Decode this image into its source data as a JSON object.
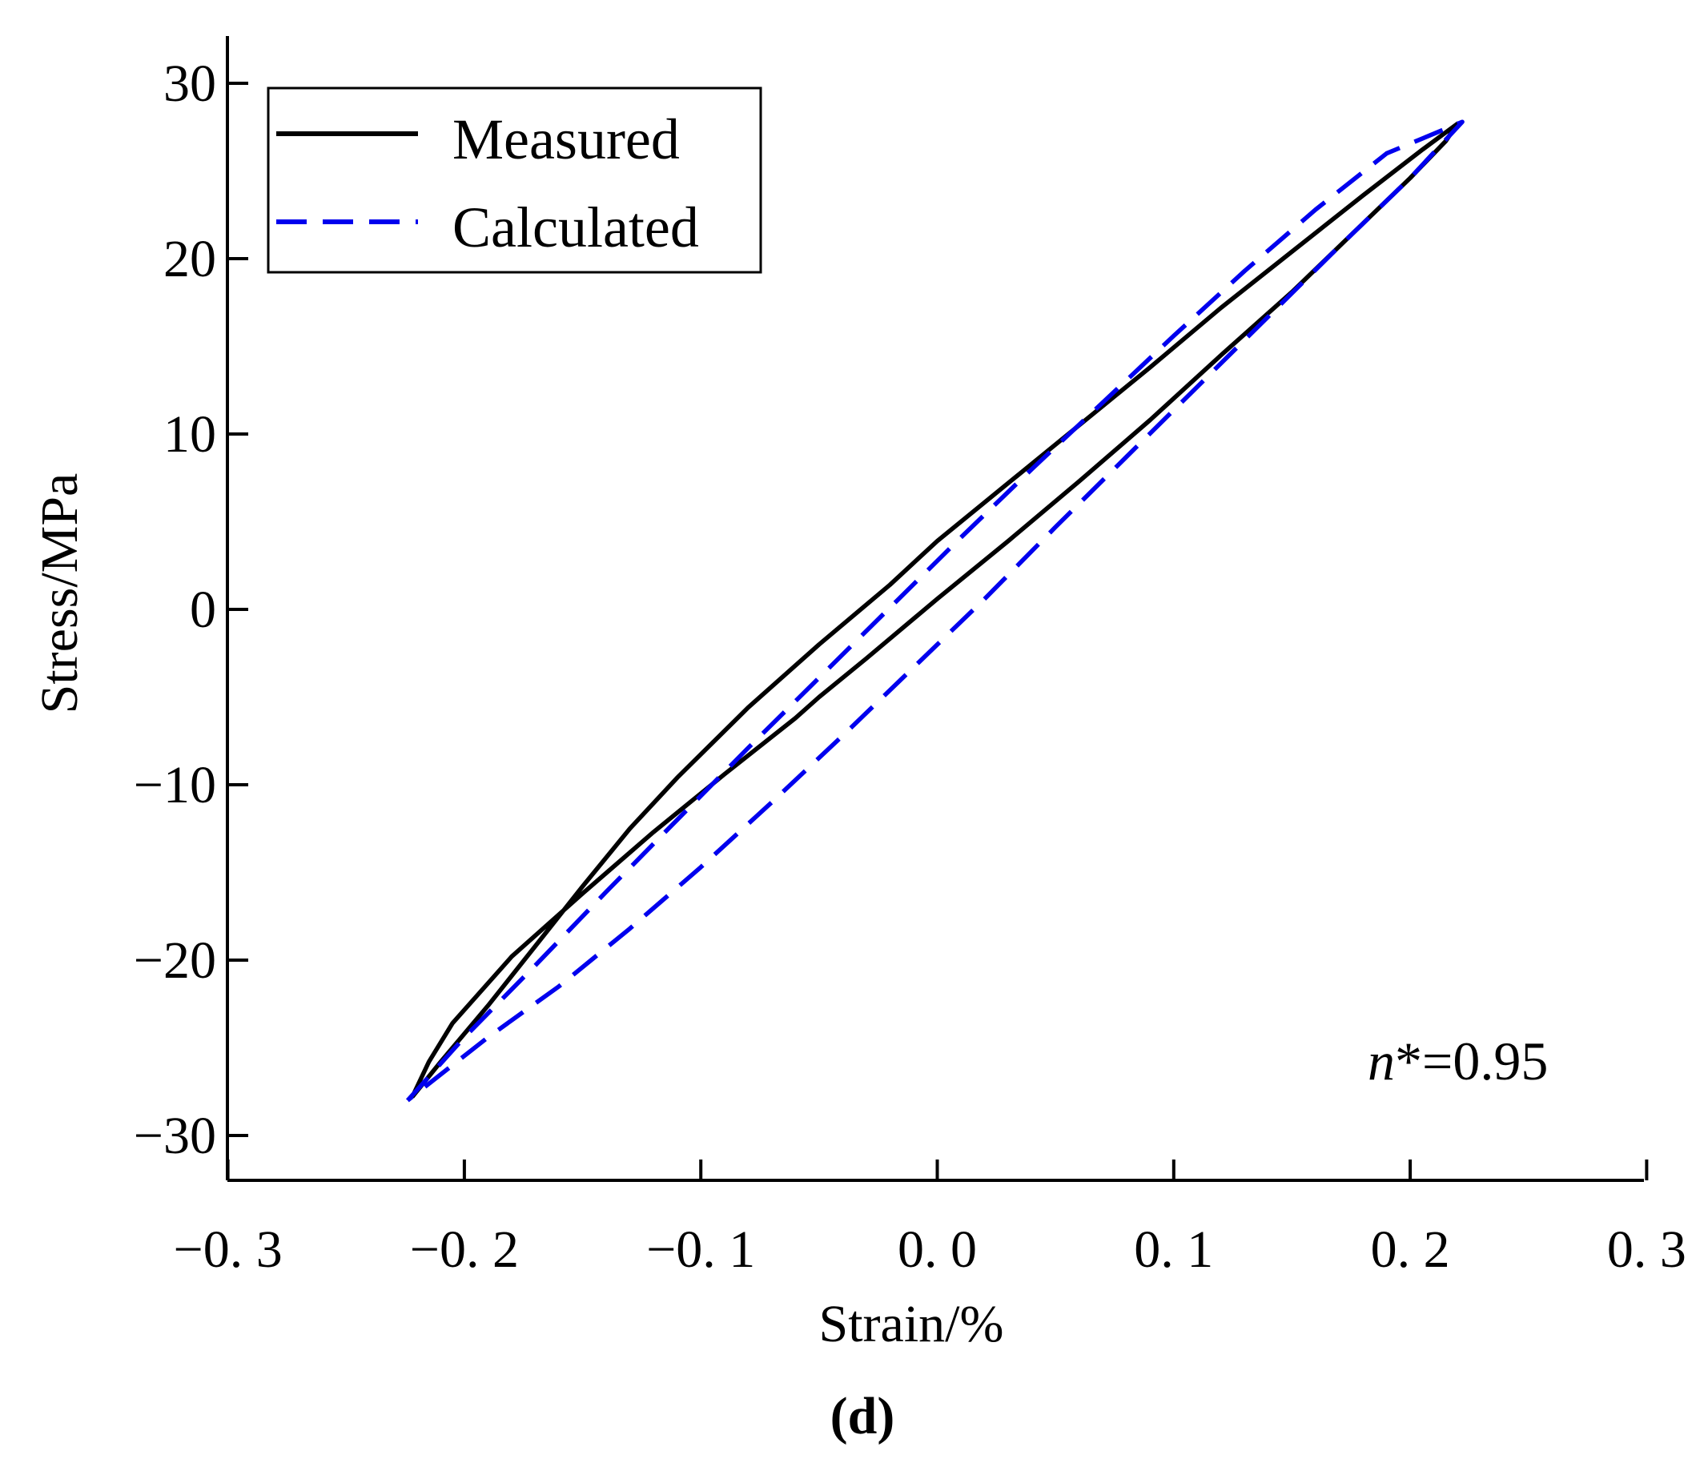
{
  "chart_data": {
    "type": "line",
    "title": "",
    "xlabel": "Strain/%",
    "ylabel": "Stress/MPa",
    "xlim": [
      -0.3,
      0.3
    ],
    "ylim": [
      -32.5,
      32.5
    ],
    "xticks": [
      -0.3,
      -0.2,
      -0.1,
      0.0,
      0.1,
      0.2,
      0.3
    ],
    "xtick_labels": [
      "−0. 3",
      "−0. 2",
      "−0. 1",
      "0. 0",
      "0. 1",
      "0. 2",
      "0. 3"
    ],
    "yticks": [
      -30,
      -20,
      -10,
      0,
      10,
      20,
      30
    ],
    "ytick_labels": [
      "−30",
      "−20",
      "−10",
      "0",
      "10",
      "20",
      "30"
    ],
    "grid": false,
    "legend_position": "top-left",
    "annotation": {
      "italic": "n",
      "rest": "*=0.95"
    },
    "caption": "(d)",
    "series": [
      {
        "name": "Measured",
        "color": "#000000",
        "style": "solid",
        "points": [
          [
            -0.222,
            -27.8
          ],
          [
            -0.21,
            -25.8
          ],
          [
            -0.19,
            -22.6
          ],
          [
            -0.17,
            -19.2
          ],
          [
            -0.15,
            -15.8
          ],
          [
            -0.13,
            -12.5
          ],
          [
            -0.11,
            -9.6
          ],
          [
            -0.08,
            -5.6
          ],
          [
            -0.05,
            -2.0
          ],
          [
            -0.02,
            1.4
          ],
          [
            0.0,
            3.9
          ],
          [
            0.03,
            7.2
          ],
          [
            0.06,
            10.5
          ],
          [
            0.09,
            13.8
          ],
          [
            0.12,
            17.2
          ],
          [
            0.15,
            20.4
          ],
          [
            0.18,
            23.6
          ],
          [
            0.205,
            26.2
          ],
          [
            0.22,
            27.7
          ],
          [
            0.215,
            26.7
          ],
          [
            0.2,
            24.6
          ],
          [
            0.18,
            22.0
          ],
          [
            0.15,
            18.1
          ],
          [
            0.12,
            14.5
          ],
          [
            0.09,
            10.8
          ],
          [
            0.06,
            7.3
          ],
          [
            0.03,
            3.9
          ],
          [
            0.0,
            0.6
          ],
          [
            -0.03,
            -2.8
          ],
          [
            -0.05,
            -5.0
          ],
          [
            -0.06,
            -6.2
          ],
          [
            -0.09,
            -9.4
          ],
          [
            -0.12,
            -12.7
          ],
          [
            -0.15,
            -16.2
          ],
          [
            -0.18,
            -19.8
          ],
          [
            -0.205,
            -23.6
          ],
          [
            -0.215,
            -25.8
          ],
          [
            -0.222,
            -27.8
          ]
        ]
      },
      {
        "name": "Calculated",
        "color": "#0000ee",
        "style": "dashed",
        "points": [
          [
            -0.224,
            -28.0
          ],
          [
            -0.2,
            -24.4
          ],
          [
            -0.17,
            -20.3
          ],
          [
            -0.14,
            -16.1
          ],
          [
            -0.11,
            -12.0
          ],
          [
            -0.08,
            -7.9
          ],
          [
            -0.05,
            -3.9
          ],
          [
            -0.02,
            0.1
          ],
          [
            0.01,
            4.1
          ],
          [
            0.04,
            8.0
          ],
          [
            0.07,
            11.8
          ],
          [
            0.1,
            15.6
          ],
          [
            0.13,
            19.3
          ],
          [
            0.16,
            22.8
          ],
          [
            0.19,
            26.0
          ],
          [
            0.222,
            27.8
          ],
          [
            0.2,
            24.6
          ],
          [
            0.17,
            20.7
          ],
          [
            0.14,
            16.7
          ],
          [
            0.11,
            12.7
          ],
          [
            0.08,
            8.7
          ],
          [
            0.05,
            4.7
          ],
          [
            0.02,
            0.6
          ],
          [
            -0.01,
            -3.3
          ],
          [
            -0.04,
            -7.2
          ],
          [
            -0.07,
            -11.0
          ],
          [
            -0.1,
            -14.7
          ],
          [
            -0.13,
            -18.2
          ],
          [
            -0.16,
            -21.5
          ],
          [
            -0.19,
            -24.4
          ],
          [
            -0.224,
            -28.0
          ]
        ]
      }
    ]
  },
  "colors": {
    "axis": "#000000",
    "measured": "#000000",
    "calculated": "#0000ee"
  }
}
